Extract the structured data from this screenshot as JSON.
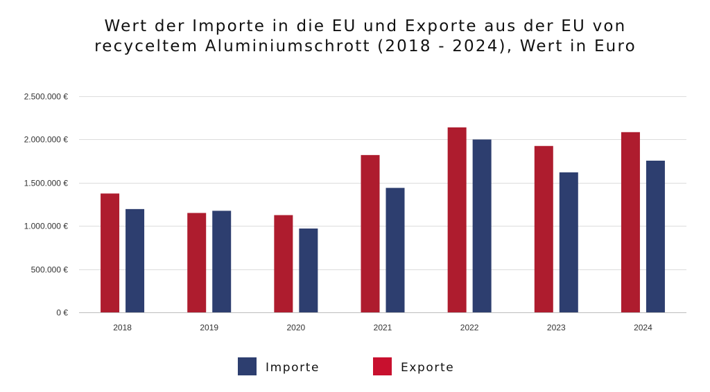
{
  "chart_data": {
    "type": "bar",
    "title": [
      "Wert der Importe in die EU und Exporte aus der EU von",
      "recyceltem Aluminiumschrott (2018 - 2024), Wert in Euro"
    ],
    "xlabel": "",
    "ylabel": "",
    "categories": [
      "2018",
      "2019",
      "2020",
      "2021",
      "2022",
      "2023",
      "2024"
    ],
    "series": [
      {
        "name": "Exporte",
        "color": "#ae1c2e",
        "values": [
          1375000,
          1150000,
          1125000,
          1820000,
          2140000,
          1925000,
          2085000
        ]
      },
      {
        "name": "Importe",
        "color": "#2d3e6f",
        "values": [
          1195000,
          1175000,
          970000,
          1440000,
          2000000,
          1620000,
          1755000
        ]
      }
    ],
    "ylim": [
      0,
      2500000
    ],
    "yticks": [
      0,
      500000,
      1000000,
      1500000,
      2000000,
      2500000
    ],
    "ytick_labels": [
      "0 €",
      "500.000 €",
      "1.000.000 €",
      "1.500.000 €",
      "2.000.000 €",
      "2.500.000 €"
    ],
    "grid": true,
    "legend": {
      "position": "bottom-center",
      "items": [
        {
          "label": "Importe",
          "color": "#2d3e6f"
        },
        {
          "label": "Exporte",
          "color": "#c8102e"
        }
      ]
    }
  }
}
